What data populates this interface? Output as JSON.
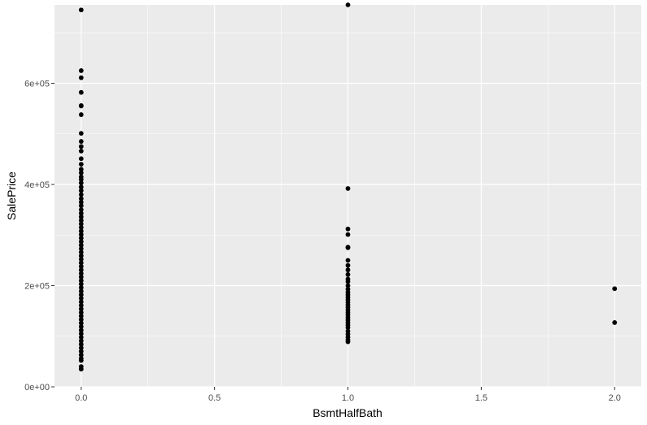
{
  "chart_data": {
    "type": "scatter",
    "title": "",
    "xlabel": "BsmtHalfBath",
    "ylabel": "SalePrice",
    "xlim": [
      -0.1,
      2.1
    ],
    "ylim": [
      0,
      755000
    ],
    "x_ticks": [
      {
        "value": 0,
        "label": "0.0"
      },
      {
        "value": 0.5,
        "label": "0.5"
      },
      {
        "value": 1,
        "label": "1.0"
      },
      {
        "value": 1.5,
        "label": "1.5"
      },
      {
        "value": 2,
        "label": "2.0"
      }
    ],
    "y_ticks": [
      {
        "value": 0,
        "label": "0e+00"
      },
      {
        "value": 200000,
        "label": "2e+05"
      },
      {
        "value": 400000,
        "label": "4e+05"
      },
      {
        "value": 600000,
        "label": "6e+05"
      }
    ],
    "grid": true,
    "colors": {
      "panel": "#ebebeb",
      "grid_major": "#ffffff",
      "point": "#000000"
    },
    "points": [
      {
        "x": 0,
        "y": 745000
      },
      {
        "x": 0,
        "y": 625000
      },
      {
        "x": 0,
        "y": 611000
      },
      {
        "x": 0,
        "y": 582000
      },
      {
        "x": 0,
        "y": 556000
      },
      {
        "x": 0,
        "y": 555000
      },
      {
        "x": 0,
        "y": 538000
      },
      {
        "x": 0,
        "y": 501000
      },
      {
        "x": 0,
        "y": 485000
      },
      {
        "x": 0,
        "y": 475000
      },
      {
        "x": 0,
        "y": 466000
      },
      {
        "x": 0,
        "y": 451000
      },
      {
        "x": 0,
        "y": 440000
      },
      {
        "x": 0,
        "y": 430000
      },
      {
        "x": 0,
        "y": 423000
      },
      {
        "x": 0,
        "y": 415000
      },
      {
        "x": 0,
        "y": 410000
      },
      {
        "x": 0,
        "y": 403000
      },
      {
        "x": 0,
        "y": 395000
      },
      {
        "x": 0,
        "y": 388000
      },
      {
        "x": 0,
        "y": 380000
      },
      {
        "x": 0,
        "y": 372000
      },
      {
        "x": 0,
        "y": 365000
      },
      {
        "x": 0,
        "y": 358000
      },
      {
        "x": 0,
        "y": 350000
      },
      {
        "x": 0,
        "y": 343000
      },
      {
        "x": 0,
        "y": 336000
      },
      {
        "x": 0,
        "y": 329000
      },
      {
        "x": 0,
        "y": 322000
      },
      {
        "x": 0,
        "y": 315000
      },
      {
        "x": 0,
        "y": 308000
      },
      {
        "x": 0,
        "y": 301000
      },
      {
        "x": 0,
        "y": 294000
      },
      {
        "x": 0,
        "y": 287000
      },
      {
        "x": 0,
        "y": 280000
      },
      {
        "x": 0,
        "y": 273000
      },
      {
        "x": 0,
        "y": 266000
      },
      {
        "x": 0,
        "y": 259000
      },
      {
        "x": 0,
        "y": 252000
      },
      {
        "x": 0,
        "y": 245000
      },
      {
        "x": 0,
        "y": 238000
      },
      {
        "x": 0,
        "y": 231000
      },
      {
        "x": 0,
        "y": 224000
      },
      {
        "x": 0,
        "y": 217000
      },
      {
        "x": 0,
        "y": 210000
      },
      {
        "x": 0,
        "y": 203000
      },
      {
        "x": 0,
        "y": 196000
      },
      {
        "x": 0,
        "y": 189000
      },
      {
        "x": 0,
        "y": 182000
      },
      {
        "x": 0,
        "y": 175000
      },
      {
        "x": 0,
        "y": 168000
      },
      {
        "x": 0,
        "y": 161000
      },
      {
        "x": 0,
        "y": 154000
      },
      {
        "x": 0,
        "y": 147000
      },
      {
        "x": 0,
        "y": 140000
      },
      {
        "x": 0,
        "y": 133000
      },
      {
        "x": 0,
        "y": 126000
      },
      {
        "x": 0,
        "y": 119000
      },
      {
        "x": 0,
        "y": 112000
      },
      {
        "x": 0,
        "y": 105000
      },
      {
        "x": 0,
        "y": 98000
      },
      {
        "x": 0,
        "y": 91000
      },
      {
        "x": 0,
        "y": 84000
      },
      {
        "x": 0,
        "y": 77000
      },
      {
        "x": 0,
        "y": 70000
      },
      {
        "x": 0,
        "y": 63000
      },
      {
        "x": 0,
        "y": 56000
      },
      {
        "x": 0,
        "y": 52000
      },
      {
        "x": 0,
        "y": 40000
      },
      {
        "x": 0,
        "y": 35000
      },
      {
        "x": 1,
        "y": 755000
      },
      {
        "x": 1,
        "y": 392000
      },
      {
        "x": 1,
        "y": 312000
      },
      {
        "x": 1,
        "y": 301000
      },
      {
        "x": 1,
        "y": 276000
      },
      {
        "x": 1,
        "y": 275000
      },
      {
        "x": 1,
        "y": 250000
      },
      {
        "x": 1,
        "y": 240000
      },
      {
        "x": 1,
        "y": 231000
      },
      {
        "x": 1,
        "y": 222000
      },
      {
        "x": 1,
        "y": 213000
      },
      {
        "x": 1,
        "y": 208000
      },
      {
        "x": 1,
        "y": 200000
      },
      {
        "x": 1,
        "y": 193000
      },
      {
        "x": 1,
        "y": 187000
      },
      {
        "x": 1,
        "y": 182000
      },
      {
        "x": 1,
        "y": 177000
      },
      {
        "x": 1,
        "y": 172000
      },
      {
        "x": 1,
        "y": 167000
      },
      {
        "x": 1,
        "y": 162000
      },
      {
        "x": 1,
        "y": 157000
      },
      {
        "x": 1,
        "y": 152000
      },
      {
        "x": 1,
        "y": 147000
      },
      {
        "x": 1,
        "y": 142000
      },
      {
        "x": 1,
        "y": 137000
      },
      {
        "x": 1,
        "y": 132000
      },
      {
        "x": 1,
        "y": 127000
      },
      {
        "x": 1,
        "y": 122000
      },
      {
        "x": 1,
        "y": 117000
      },
      {
        "x": 1,
        "y": 110000
      },
      {
        "x": 1,
        "y": 104000
      },
      {
        "x": 1,
        "y": 98000
      },
      {
        "x": 1,
        "y": 93000
      },
      {
        "x": 1,
        "y": 89000
      },
      {
        "x": 2,
        "y": 194000
      },
      {
        "x": 2,
        "y": 127000
      }
    ]
  }
}
